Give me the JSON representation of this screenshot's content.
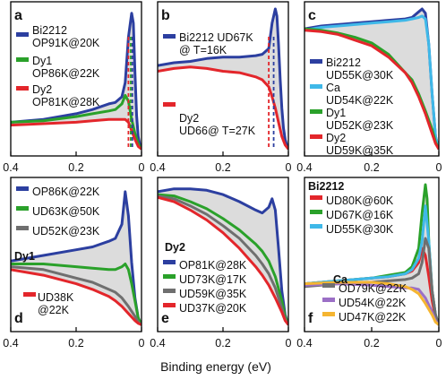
{
  "xlabel": "Binding energy (eV)",
  "colors": {
    "blue": "#2c3fa0",
    "green": "#2aa12a",
    "red": "#e3262b",
    "gray": "#6f6f6f",
    "cyan": "#3fb8e8",
    "purple": "#9b6fc6",
    "orange": "#f5b531",
    "fill": "#dcdcdc"
  },
  "chart_data": [
    {
      "type": "line",
      "letter": "a",
      "xlim": [
        0.4,
        0
      ],
      "xticks": [
        "0.4",
        "0.2",
        "0"
      ],
      "series": [
        {
          "name": "Bi2212 OP91K@20K",
          "color": "blue",
          "x": [
            0.4,
            0.3,
            0.2,
            0.15,
            0.1,
            0.08,
            0.06,
            0.05,
            0.04,
            0.03,
            0.025,
            0.02,
            0.015,
            0.01,
            0.005,
            0.0
          ],
          "y": [
            0.2,
            0.22,
            0.26,
            0.29,
            0.33,
            0.34,
            0.38,
            0.48,
            0.8,
            0.97,
            0.9,
            0.55,
            0.25,
            0.1,
            0.04,
            0.01
          ]
        },
        {
          "name": "Dy1 OP86K@22K",
          "color": "green",
          "x": [
            0.4,
            0.3,
            0.2,
            0.15,
            0.1,
            0.08,
            0.06,
            0.05,
            0.04,
            0.03,
            0.02,
            0.01,
            0.0
          ],
          "y": [
            0.2,
            0.21,
            0.24,
            0.26,
            0.28,
            0.29,
            0.33,
            0.39,
            0.35,
            0.22,
            0.12,
            0.05,
            0.01
          ]
        },
        {
          "name": "Dy2 OP81K@28K",
          "color": "red",
          "x": [
            0.4,
            0.3,
            0.2,
            0.15,
            0.1,
            0.08,
            0.06,
            0.05,
            0.04,
            0.03,
            0.02,
            0.01,
            0.0
          ],
          "y": [
            0.18,
            0.19,
            0.2,
            0.21,
            0.22,
            0.22,
            0.22,
            0.22,
            0.2,
            0.14,
            0.08,
            0.03,
            0.01
          ]
        }
      ],
      "fill_between": [
        0,
        2
      ],
      "markers": [
        {
          "x": 0.04,
          "color": "red"
        },
        {
          "x": 0.033,
          "color": "green"
        },
        {
          "x": 0.028,
          "color": "blue"
        }
      ]
    },
    {
      "type": "line",
      "letter": "b",
      "xlim": [
        0.4,
        0
      ],
      "xticks": [
        "0.4",
        "0.2",
        "0"
      ],
      "series": [
        {
          "name": "Bi2212 UD67K @ T=16K",
          "color": "blue",
          "x": [
            0.4,
            0.35,
            0.3,
            0.25,
            0.2,
            0.15,
            0.1,
            0.08,
            0.06,
            0.05,
            0.04,
            0.035,
            0.03,
            0.025,
            0.02,
            0.015,
            0.01,
            0.005,
            0.0
          ],
          "y": [
            0.6,
            0.62,
            0.63,
            0.65,
            0.66,
            0.66,
            0.67,
            0.68,
            0.72,
            0.9,
            1.0,
            0.95,
            0.75,
            0.5,
            0.3,
            0.16,
            0.08,
            0.04,
            0.01
          ]
        },
        {
          "name": "Dy2 UD66@ T=27K",
          "color": "red",
          "x": [
            0.4,
            0.35,
            0.3,
            0.25,
            0.2,
            0.15,
            0.1,
            0.08,
            0.06,
            0.05,
            0.04,
            0.03,
            0.02,
            0.01,
            0.0
          ],
          "y": [
            0.56,
            0.58,
            0.59,
            0.58,
            0.56,
            0.55,
            0.52,
            0.5,
            0.45,
            0.38,
            0.3,
            0.2,
            0.1,
            0.04,
            0.01
          ]
        }
      ],
      "fill_between": [
        0,
        1
      ],
      "markers": [
        {
          "x": 0.06,
          "color": "red"
        },
        {
          "x": 0.045,
          "color": "blue"
        }
      ]
    },
    {
      "type": "line",
      "letter": "c",
      "xlim": [
        0.4,
        0
      ],
      "xticks": [
        "0.4",
        "0.2",
        "0"
      ],
      "series": [
        {
          "name": "Bi2212 UD55K@30K",
          "color": "blue",
          "x": [
            0.4,
            0.35,
            0.3,
            0.25,
            0.2,
            0.15,
            0.1,
            0.08,
            0.06,
            0.05,
            0.04,
            0.03,
            0.02,
            0.01,
            0.0
          ],
          "y": [
            0.86,
            0.88,
            0.89,
            0.9,
            0.91,
            0.92,
            0.93,
            0.94,
            0.98,
            1.0,
            0.97,
            0.75,
            0.4,
            0.1,
            0.01
          ]
        },
        {
          "name": "Ca UD54K@22K",
          "color": "cyan",
          "x": [
            0.4,
            0.35,
            0.3,
            0.25,
            0.2,
            0.15,
            0.1,
            0.08,
            0.06,
            0.05,
            0.04,
            0.03,
            0.02,
            0.01,
            0.0
          ],
          "y": [
            0.85,
            0.87,
            0.88,
            0.89,
            0.9,
            0.91,
            0.92,
            0.93,
            0.94,
            0.95,
            0.93,
            0.75,
            0.4,
            0.1,
            0.01
          ]
        },
        {
          "name": "Dy1 UD52K@23K",
          "color": "green",
          "x": [
            0.4,
            0.35,
            0.3,
            0.25,
            0.2,
            0.15,
            0.1,
            0.08,
            0.06,
            0.04,
            0.02,
            0.01,
            0.0
          ],
          "y": [
            0.86,
            0.85,
            0.83,
            0.8,
            0.76,
            0.68,
            0.55,
            0.5,
            0.4,
            0.28,
            0.15,
            0.06,
            0.01
          ]
        },
        {
          "name": "Dy2 UD59K@35K",
          "color": "red",
          "x": [
            0.4,
            0.35,
            0.3,
            0.25,
            0.2,
            0.15,
            0.1,
            0.08,
            0.06,
            0.04,
            0.02,
            0.01,
            0.0
          ],
          "y": [
            0.85,
            0.84,
            0.82,
            0.78,
            0.74,
            0.66,
            0.55,
            0.48,
            0.38,
            0.26,
            0.12,
            0.05,
            0.01
          ]
        }
      ],
      "fill_between": [
        0,
        3
      ],
      "markers": []
    },
    {
      "type": "line",
      "letter": "d",
      "group": "Dy1",
      "xlim": [
        0.4,
        0
      ],
      "xticks": [
        "0.4",
        "0.2",
        "0"
      ],
      "series": [
        {
          "name": "OP86K@22K",
          "color": "blue",
          "x": [
            0.4,
            0.3,
            0.2,
            0.15,
            0.1,
            0.08,
            0.06,
            0.05,
            0.04,
            0.03,
            0.02,
            0.01,
            0.0
          ],
          "y": [
            0.46,
            0.5,
            0.54,
            0.56,
            0.6,
            0.62,
            0.72,
            0.95,
            0.78,
            0.45,
            0.2,
            0.06,
            0.01
          ]
        },
        {
          "name": "UD63K@50K",
          "color": "green",
          "x": [
            0.4,
            0.3,
            0.2,
            0.15,
            0.1,
            0.08,
            0.06,
            0.05,
            0.04,
            0.03,
            0.02,
            0.01,
            0.0
          ],
          "y": [
            0.44,
            0.44,
            0.42,
            0.41,
            0.4,
            0.4,
            0.42,
            0.44,
            0.4,
            0.3,
            0.18,
            0.06,
            0.01
          ]
        },
        {
          "name": "UD52K@23K",
          "color": "gray",
          "x": [
            0.4,
            0.3,
            0.2,
            0.15,
            0.1,
            0.08,
            0.06,
            0.04,
            0.02,
            0.01,
            0.0
          ],
          "y": [
            0.42,
            0.4,
            0.34,
            0.31,
            0.26,
            0.24,
            0.2,
            0.14,
            0.07,
            0.03,
            0.01
          ]
        },
        {
          "name": "UD38K @22K",
          "color": "red",
          "x": [
            0.4,
            0.3,
            0.2,
            0.15,
            0.1,
            0.08,
            0.06,
            0.04,
            0.02,
            0.01,
            0.0
          ],
          "y": [
            0.4,
            0.36,
            0.3,
            0.26,
            0.21,
            0.18,
            0.14,
            0.09,
            0.04,
            0.02,
            0.01
          ]
        }
      ],
      "fill_between": [
        0,
        3
      ],
      "markers": []
    },
    {
      "type": "line",
      "letter": "e",
      "group": "Dy2",
      "xlim": [
        0.4,
        0
      ],
      "xticks": [
        "0.4",
        "0.2",
        "0"
      ],
      "series": [
        {
          "name": "OP81K@28K",
          "color": "blue",
          "x": [
            0.4,
            0.35,
            0.3,
            0.25,
            0.2,
            0.15,
            0.1,
            0.08,
            0.06,
            0.05,
            0.04,
            0.03,
            0.02,
            0.01,
            0.0
          ],
          "y": [
            0.95,
            0.97,
            0.97,
            0.96,
            0.93,
            0.88,
            0.82,
            0.8,
            0.84,
            0.9,
            0.82,
            0.55,
            0.25,
            0.08,
            0.01
          ]
        },
        {
          "name": "UD73K@17K",
          "color": "green",
          "x": [
            0.4,
            0.35,
            0.3,
            0.25,
            0.2,
            0.15,
            0.1,
            0.08,
            0.06,
            0.04,
            0.02,
            0.01,
            0.0
          ],
          "y": [
            0.93,
            0.92,
            0.88,
            0.83,
            0.76,
            0.68,
            0.58,
            0.53,
            0.46,
            0.35,
            0.18,
            0.07,
            0.01
          ]
        },
        {
          "name": "UD59K@35K",
          "color": "gray",
          "x": [
            0.4,
            0.35,
            0.3,
            0.25,
            0.2,
            0.15,
            0.1,
            0.08,
            0.06,
            0.04,
            0.02,
            0.01,
            0.0
          ],
          "y": [
            0.92,
            0.9,
            0.85,
            0.79,
            0.71,
            0.62,
            0.5,
            0.44,
            0.37,
            0.27,
            0.13,
            0.05,
            0.01
          ]
        },
        {
          "name": "UD37K@20K",
          "color": "red",
          "x": [
            0.4,
            0.35,
            0.3,
            0.25,
            0.2,
            0.15,
            0.1,
            0.08,
            0.06,
            0.04,
            0.02,
            0.01,
            0.0
          ],
          "y": [
            0.91,
            0.88,
            0.82,
            0.75,
            0.66,
            0.55,
            0.42,
            0.36,
            0.29,
            0.2,
            0.1,
            0.04,
            0.01
          ]
        }
      ],
      "fill_between": [
        0,
        3
      ],
      "markers": []
    },
    {
      "type": "line",
      "letter": "f",
      "group": "Bi2212",
      "group2": "Ca",
      "xlim": [
        0.4,
        0
      ],
      "xticks": [
        "0.4",
        "0.2",
        "0"
      ],
      "series": [
        {
          "name": "UD80K@60K",
          "color": "red",
          "x": [
            0.4,
            0.3,
            0.2,
            0.15,
            0.1,
            0.08,
            0.06,
            0.05,
            0.04,
            0.03,
            0.02,
            0.01,
            0.0
          ],
          "y": [
            0.3,
            0.32,
            0.34,
            0.35,
            0.37,
            0.39,
            0.45,
            0.55,
            0.5,
            0.35,
            0.18,
            0.06,
            0.01
          ]
        },
        {
          "name": "UD67K@16K",
          "color": "green",
          "x": [
            0.4,
            0.3,
            0.2,
            0.15,
            0.1,
            0.08,
            0.06,
            0.05,
            0.04,
            0.035,
            0.03,
            0.02,
            0.01,
            0.0
          ],
          "y": [
            0.3,
            0.32,
            0.34,
            0.36,
            0.38,
            0.42,
            0.55,
            0.8,
            1.0,
            0.9,
            0.6,
            0.25,
            0.08,
            0.01
          ]
        },
        {
          "name": "UD55K@30K",
          "color": "cyan",
          "x": [
            0.4,
            0.3,
            0.2,
            0.15,
            0.1,
            0.08,
            0.06,
            0.05,
            0.04,
            0.03,
            0.02,
            0.01,
            0.0
          ],
          "y": [
            0.3,
            0.32,
            0.34,
            0.35,
            0.37,
            0.4,
            0.48,
            0.6,
            0.85,
            0.6,
            0.25,
            0.08,
            0.01
          ]
        },
        {
          "name": "OD79K@22K",
          "color": "gray",
          "x": [
            0.4,
            0.3,
            0.2,
            0.15,
            0.1,
            0.08,
            0.06,
            0.05,
            0.04,
            0.03,
            0.02,
            0.01,
            0.0
          ],
          "y": [
            0.28,
            0.3,
            0.31,
            0.32,
            0.33,
            0.34,
            0.37,
            0.45,
            0.62,
            0.55,
            0.25,
            0.08,
            0.01
          ]
        },
        {
          "name": "UD54K@22K",
          "color": "purple",
          "x": [
            0.4,
            0.3,
            0.2,
            0.15,
            0.1,
            0.08,
            0.06,
            0.04,
            0.02,
            0.01,
            0.0
          ],
          "y": [
            0.29,
            0.3,
            0.29,
            0.28,
            0.27,
            0.27,
            0.26,
            0.2,
            0.1,
            0.04,
            0.01
          ]
        },
        {
          "name": "UD47K@22K",
          "color": "orange",
          "x": [
            0.4,
            0.3,
            0.2,
            0.15,
            0.1,
            0.08,
            0.06,
            0.04,
            0.02,
            0.01,
            0.0
          ],
          "y": [
            0.3,
            0.31,
            0.31,
            0.3,
            0.28,
            0.26,
            0.23,
            0.16,
            0.08,
            0.03,
            0.01
          ]
        }
      ],
      "fill_between": [
        1,
        5
      ],
      "markers": []
    }
  ]
}
